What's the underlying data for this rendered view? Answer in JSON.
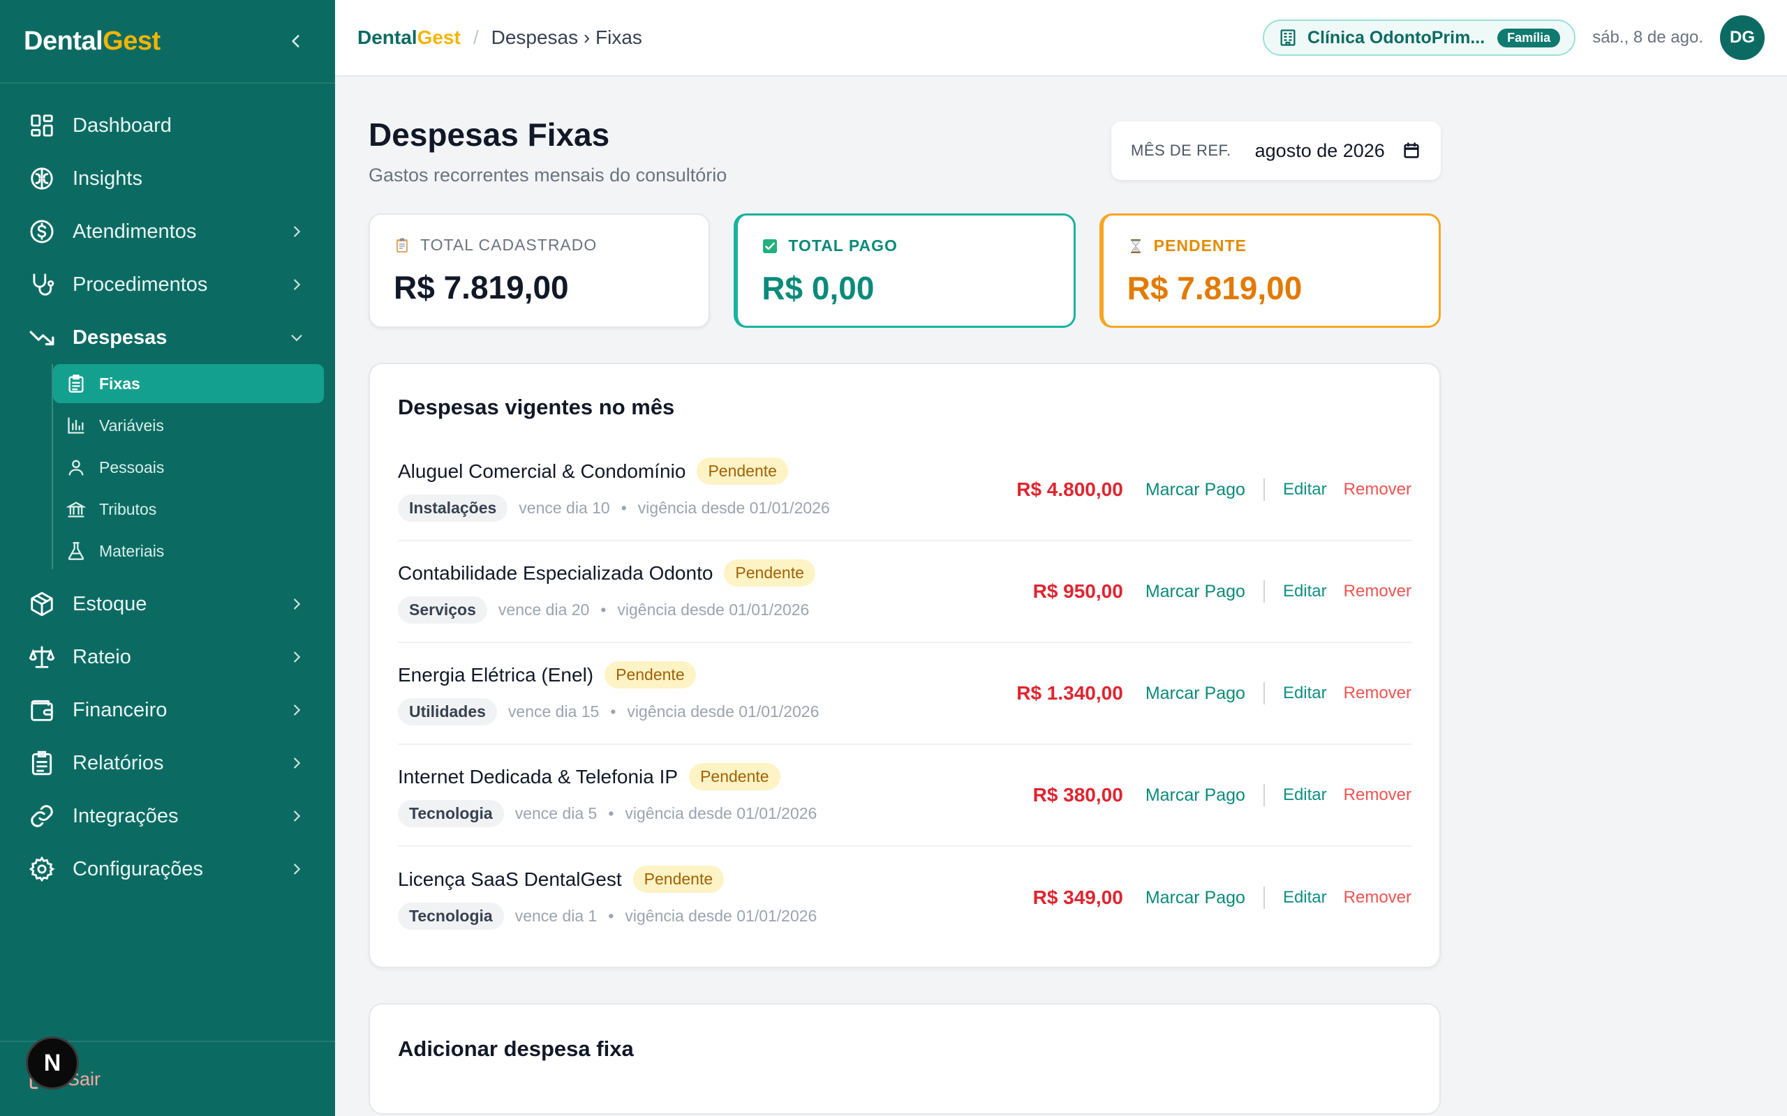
{
  "app": {
    "brand_part1": "Dental",
    "brand_part2": "Gest"
  },
  "sidebar": {
    "items": [
      {
        "label": "Dashboard",
        "icon": "grid-icon"
      },
      {
        "label": "Insights",
        "icon": "brain-icon"
      },
      {
        "label": "Atendimentos",
        "icon": "dollar-circle-icon"
      },
      {
        "label": "Procedimentos",
        "icon": "stethoscope-icon"
      },
      {
        "label": "Despesas",
        "icon": "trending-down-icon"
      },
      {
        "label": "Estoque",
        "icon": "package-icon"
      },
      {
        "label": "Rateio",
        "icon": "scale-icon"
      },
      {
        "label": "Financeiro",
        "icon": "wallet-icon"
      },
      {
        "label": "Relatórios",
        "icon": "clipboard-icon"
      },
      {
        "label": "Integrações",
        "icon": "link-icon"
      },
      {
        "label": "Configurações",
        "icon": "gear-icon"
      }
    ],
    "subitems": [
      {
        "label": "Fixas",
        "icon": "clipboard-list-icon"
      },
      {
        "label": "Variáveis",
        "icon": "bar-chart-icon"
      },
      {
        "label": "Pessoais",
        "icon": "user-icon"
      },
      {
        "label": "Tributos",
        "icon": "bank-icon"
      },
      {
        "label": "Materiais",
        "icon": "flask-icon"
      }
    ],
    "logout_label": "Sair"
  },
  "header": {
    "brand_part1": "Dental",
    "brand_part2": "Gest",
    "separator": "/",
    "breadcrumb": "Despesas › Fixas",
    "clinic_name": "Clínica OdontoPrim...",
    "clinic_badge": "Família",
    "date": "sáb., 8 de ago.",
    "avatar_initials": "DG"
  },
  "page": {
    "title": "Despesas Fixas",
    "subtitle": "Gastos recorrentes mensais do consultório",
    "month_label": "MÊS DE REF.",
    "month_value": "agosto de 2026"
  },
  "summary": {
    "total_label": "TOTAL CADASTRADO",
    "total_value": "R$ 7.819,00",
    "paid_label": "TOTAL PAGO",
    "paid_value": "R$ 0,00",
    "pending_label": "PENDENTE",
    "pending_value": "R$ 7.819,00"
  },
  "expenses": {
    "title": "Despesas vigentes no mês",
    "action_pay": "Marcar Pago",
    "action_edit": "Editar",
    "action_remove": "Remover",
    "rows": [
      {
        "name": "Aluguel Comercial & Condomínio",
        "status": "Pendente",
        "category": "Instalações",
        "due": "vence dia 10",
        "since": "vigência desde 01/01/2026",
        "amount": "R$ 4.800,00"
      },
      {
        "name": "Contabilidade Especializada Odonto",
        "status": "Pendente",
        "category": "Serviços",
        "due": "vence dia 20",
        "since": "vigência desde 01/01/2026",
        "amount": "R$ 950,00"
      },
      {
        "name": "Energia Elétrica (Enel)",
        "status": "Pendente",
        "category": "Utilidades",
        "due": "vence dia 15",
        "since": "vigência desde 01/01/2026",
        "amount": "R$ 1.340,00"
      },
      {
        "name": "Internet Dedicada & Telefonia IP",
        "status": "Pendente",
        "category": "Tecnologia",
        "due": "vence dia 5",
        "since": "vigência desde 01/01/2026",
        "amount": "R$ 380,00"
      },
      {
        "name": "Licença SaaS DentalGest",
        "status": "Pendente",
        "category": "Tecnologia",
        "due": "vence dia 1",
        "since": "vigência desde 01/01/2026",
        "amount": "R$ 349,00"
      }
    ]
  },
  "add_panel": {
    "title": "Adicionar despesa fixa"
  },
  "dev_badge": "N",
  "colors": {
    "sidebar_bg": "#0b6b63",
    "brand_accent": "#f5b400",
    "active_item": "#14a08f",
    "paid_green": "#0b8a7a",
    "pending_orange": "#e27a00",
    "amount_red": "#e0242f"
  }
}
